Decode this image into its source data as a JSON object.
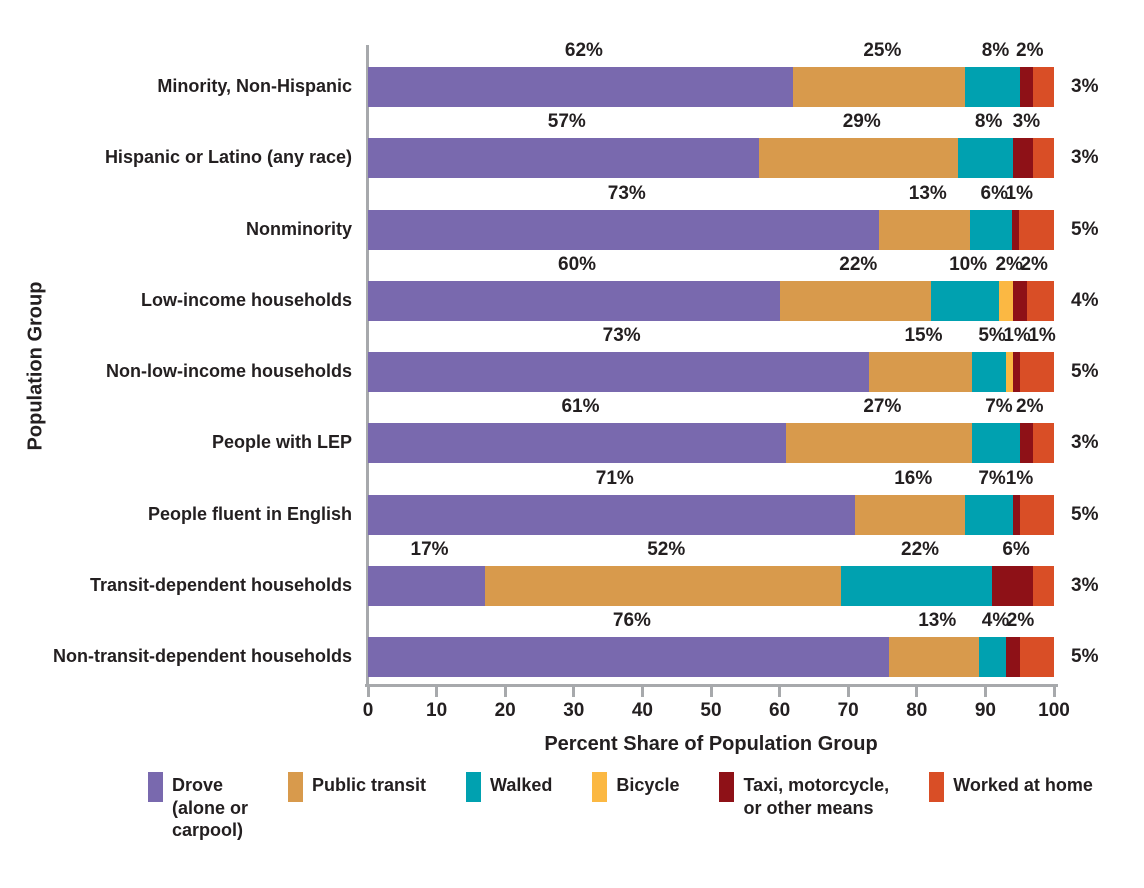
{
  "chart_data": {
    "type": "bar",
    "stacked": true,
    "orientation": "horizontal",
    "title": "",
    "xlabel": "Percent Share of Population Group",
    "ylabel": "Population Group",
    "xlim": [
      0,
      100
    ],
    "xticks": [
      0,
      10,
      20,
      30,
      40,
      50,
      60,
      70,
      80,
      90,
      100
    ],
    "grid": false,
    "value_label_format": "{value}%",
    "categories": [
      "Minority, Non-Hispanic",
      "Hispanic or Latino (any race)",
      "Nonminority",
      "Low-income households",
      "Non-low-income households",
      "People with LEP",
      "People fluent in English",
      "Transit-dependent households",
      "Non-transit-dependent households"
    ],
    "series": [
      {
        "name": "Drove (alone or carpool)",
        "color": "#7969AE",
        "values": [
          62,
          57,
          73,
          60,
          73,
          61,
          71,
          17,
          76
        ]
      },
      {
        "name": "Public transit",
        "color": "#D89A4C",
        "values": [
          25,
          29,
          13,
          22,
          15,
          27,
          16,
          52,
          13
        ]
      },
      {
        "name": "Walked",
        "color": "#00A1B0",
        "values": [
          8,
          8,
          6,
          10,
          5,
          7,
          7,
          22,
          4
        ]
      },
      {
        "name": "Bicycle",
        "color": "#FBB843",
        "values": [
          0,
          0,
          0,
          2,
          1,
          0,
          0,
          0,
          0
        ]
      },
      {
        "name": "Taxi, motorcycle, or other means",
        "color": "#8E1117",
        "values": [
          2,
          3,
          1,
          2,
          1,
          2,
          1,
          6,
          2
        ]
      },
      {
        "name": "Worked at home",
        "color": "#D94E26",
        "label_position": "right-of-bar",
        "values": [
          3,
          3,
          5,
          4,
          5,
          3,
          5,
          3,
          5
        ]
      }
    ],
    "legend_position": "bottom"
  },
  "legend": {
    "items": [
      {
        "lines": [
          "Drove",
          "(alone or",
          "carpool)"
        ],
        "color": "#7969AE"
      },
      {
        "lines": [
          "Public transit"
        ],
        "color": "#D89A4C"
      },
      {
        "lines": [
          "Walked"
        ],
        "color": "#00A1B0"
      },
      {
        "lines": [
          "Bicycle"
        ],
        "color": "#FBB843"
      },
      {
        "lines": [
          "Taxi, motorcycle,",
          "or other means"
        ],
        "color": "#8E1117"
      },
      {
        "lines": [
          "Worked at home"
        ],
        "color": "#D94E26"
      }
    ]
  },
  "style": {
    "axis_color": "#A7A9AC",
    "text_color": "#231F20",
    "background": "#FFFFFF"
  }
}
